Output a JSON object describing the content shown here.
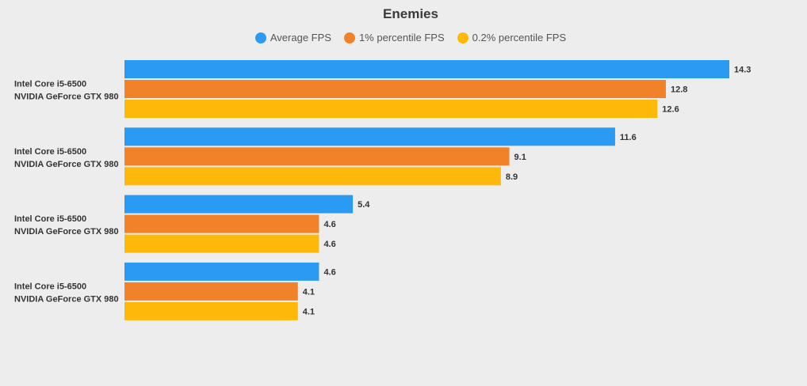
{
  "chart_data": {
    "type": "bar",
    "orientation": "horizontal",
    "title": "Enemies",
    "categories": [
      [
        "Intel Core i5-6500",
        "NVIDIA GeForce GTX 980"
      ],
      [
        "Intel Core i5-6500",
        "NVIDIA GeForce GTX 980"
      ],
      [
        "Intel Core i5-6500",
        "NVIDIA GeForce GTX 980"
      ],
      [
        "Intel Core i5-6500",
        "NVIDIA GeForce GTX 980"
      ]
    ],
    "series": [
      {
        "name": "Average FPS",
        "color": "#2b9af3",
        "values": [
          14.3,
          11.6,
          5.4,
          4.6
        ]
      },
      {
        "name": "1% percentile FPS",
        "color": "#f28229",
        "values": [
          12.8,
          9.1,
          4.6,
          4.1
        ]
      },
      {
        "name": "0.2% percentile FPS",
        "color": "#fdb809",
        "values": [
          12.6,
          8.9,
          4.6,
          4.1
        ]
      }
    ],
    "xlim": [
      0,
      14.3
    ],
    "grid": false,
    "legend_position": "top-center"
  }
}
